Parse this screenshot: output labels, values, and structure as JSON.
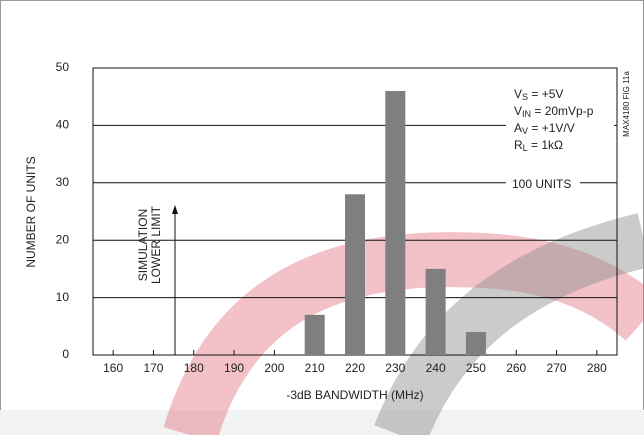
{
  "chart_data": {
    "type": "bar",
    "x": [
      210,
      220,
      230,
      240,
      250
    ],
    "values": [
      7,
      28,
      46,
      15,
      4
    ],
    "color": "#7f7f7f",
    "xlim": [
      155,
      285
    ],
    "xticks": [
      160,
      170,
      180,
      190,
      200,
      210,
      220,
      230,
      240,
      250,
      260,
      270,
      280
    ],
    "ylim": [
      0,
      50
    ],
    "yticks": [
      0,
      10,
      20,
      30,
      40,
      50
    ],
    "grid": true,
    "x_label": "-3dB BANDWIDTH (MHz)",
    "y_label": "NUMBER OF UNITS",
    "conditions": [
      {
        "symbol": "V",
        "sub": "S",
        "text": " = +5V"
      },
      {
        "symbol": "V",
        "sub": "IN",
        "text": " = 20mVp-p"
      },
      {
        "symbol": "A",
        "sub": "V",
        "text": " = +1V/V"
      },
      {
        "symbol": "R",
        "sub": "L",
        "text": " = 1kΩ"
      }
    ],
    "total_note": "100 UNITS",
    "limit_note": [
      "SIMULATION",
      "LOWER LIMIT"
    ],
    "figure_id": "MAX4180 FIG 11a"
  }
}
